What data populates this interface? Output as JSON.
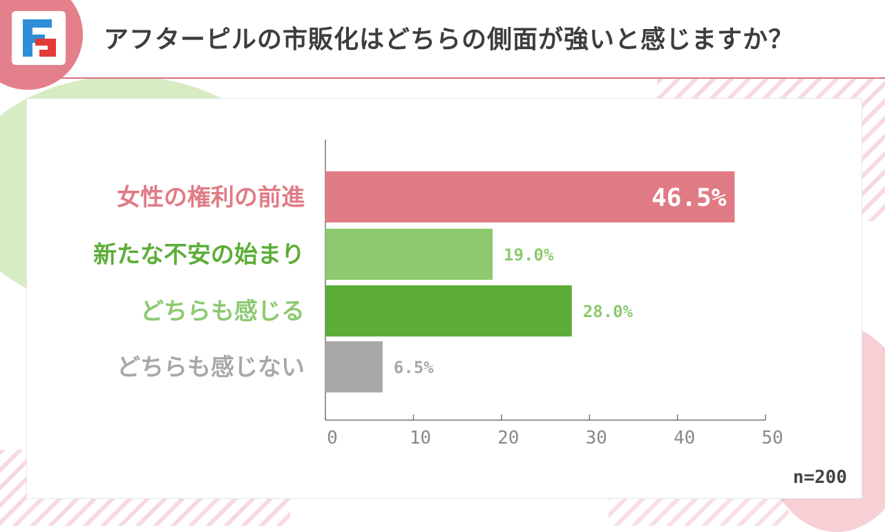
{
  "header": {
    "title": "アフターピルの市販化はどちらの側面が強いと感じますか？",
    "logo_icon": "brand-logo-icon"
  },
  "colors": {
    "accent_pink": "#e07b86",
    "dark_green": "#5cad37",
    "light_green": "#8dc96f",
    "gray": "#a8a8a8"
  },
  "chart_data": {
    "type": "bar",
    "orientation": "horizontal",
    "categories": [
      "女性の権利の前進",
      "新たな不安の始まり",
      "どちらも感じる",
      "どちらも感じない"
    ],
    "values": [
      46.5,
      19.0,
      28.0,
      6.5
    ],
    "value_labels": [
      "46.5%",
      "19.0%",
      "28.0%",
      "6.5%"
    ],
    "bar_colors": [
      "#e07b86",
      "#8dc96f",
      "#5cad37",
      "#a8a8a8"
    ],
    "label_colors": [
      "#e07b86",
      "#5cad37",
      "#8dc96f",
      "#a8a8a8"
    ],
    "value_label_colors": [
      "#ffffff",
      "#8dc96f",
      "#8dc96f",
      "#a8a8a8"
    ],
    "xlim": [
      0,
      50
    ],
    "xticks": [
      0,
      10,
      20,
      30,
      40,
      50
    ],
    "grid": false
  },
  "footer": {
    "sample_size": "n=200"
  }
}
